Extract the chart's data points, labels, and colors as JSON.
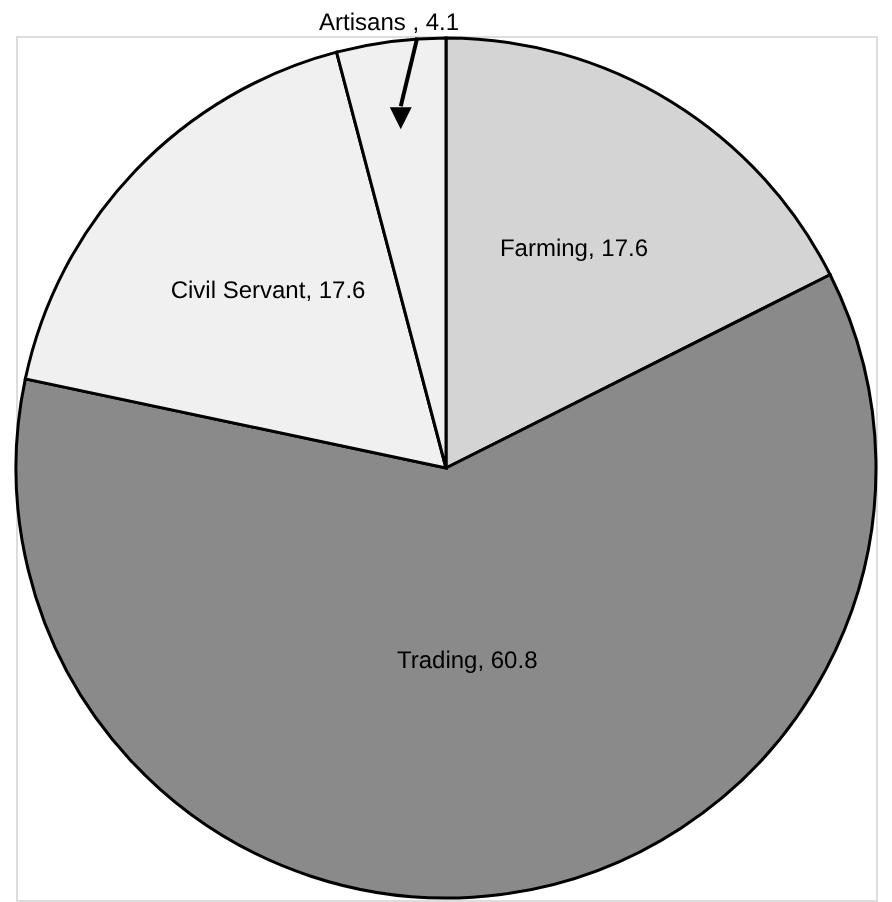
{
  "chart_data": {
    "type": "pie",
    "categories": [
      "Farming",
      "Trading",
      "Civil Servant",
      "Artisans"
    ],
    "values": [
      17.6,
      60.8,
      17.6,
      4.1
    ],
    "colors": [
      "#d4d4d4",
      "#8a8a8a",
      "#f0f0f0",
      "#f0f0f0"
    ],
    "value_labels": [
      ", 17.6",
      ", 60.8",
      ", 17.6",
      " , 4.1"
    ],
    "legend": false
  }
}
